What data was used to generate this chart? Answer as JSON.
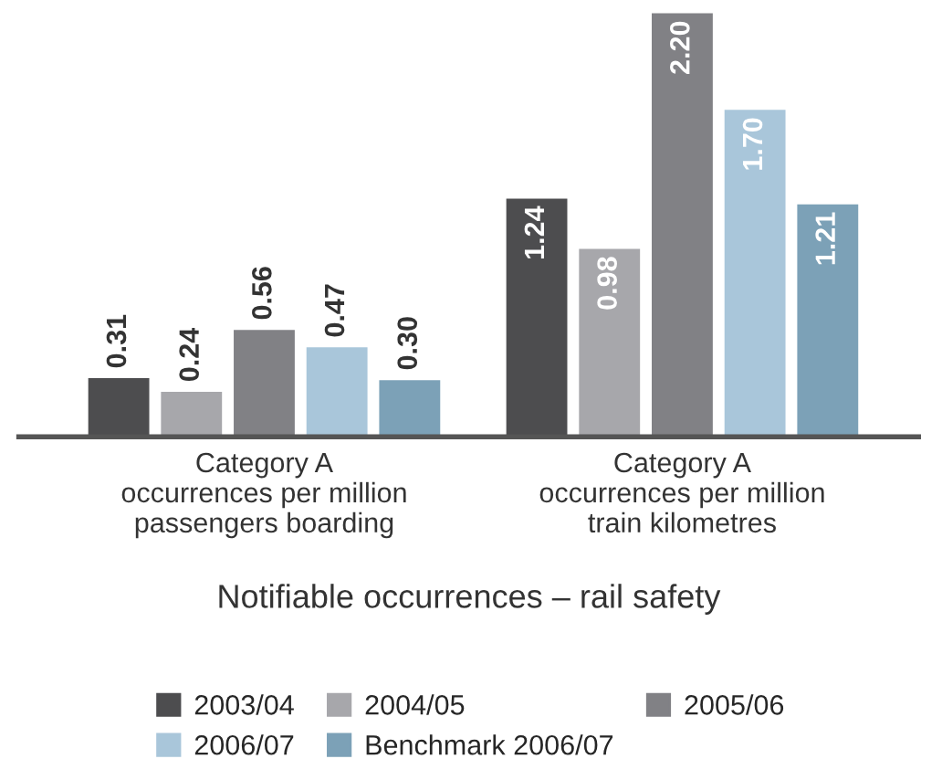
{
  "chart_data": {
    "type": "bar",
    "xlabel": "Notifiable occurrences – rail safety",
    "categories": [
      "Category A\noccurrences per million\npassengers boarding",
      "Category A\noccurrences per million\ntrain kilometres"
    ],
    "series": [
      {
        "name": "2003/04",
        "color": "#4d4d4f",
        "values": [
          0.31,
          1.24
        ],
        "value_labels": [
          "0.31",
          "1.24"
        ]
      },
      {
        "name": "2004/05",
        "color": "#a7a7ab",
        "values": [
          0.24,
          0.98
        ],
        "value_labels": [
          "0.24",
          "0.98"
        ]
      },
      {
        "name": "2005/06",
        "color": "#818185",
        "values": [
          0.56,
          2.2
        ],
        "value_labels": [
          "0.56",
          "2.20"
        ]
      },
      {
        "name": "2006/07",
        "color": "#a9c6da",
        "values": [
          0.47,
          1.7
        ],
        "value_labels": [
          "0.47",
          "1.70"
        ]
      },
      {
        "name": "Benchmark 2006/07",
        "color": "#7ca1b7",
        "values": [
          0.3,
          1.21
        ],
        "value_labels": [
          "0.30",
          "1.21"
        ]
      }
    ],
    "legend": "bottom",
    "grid": false
  }
}
